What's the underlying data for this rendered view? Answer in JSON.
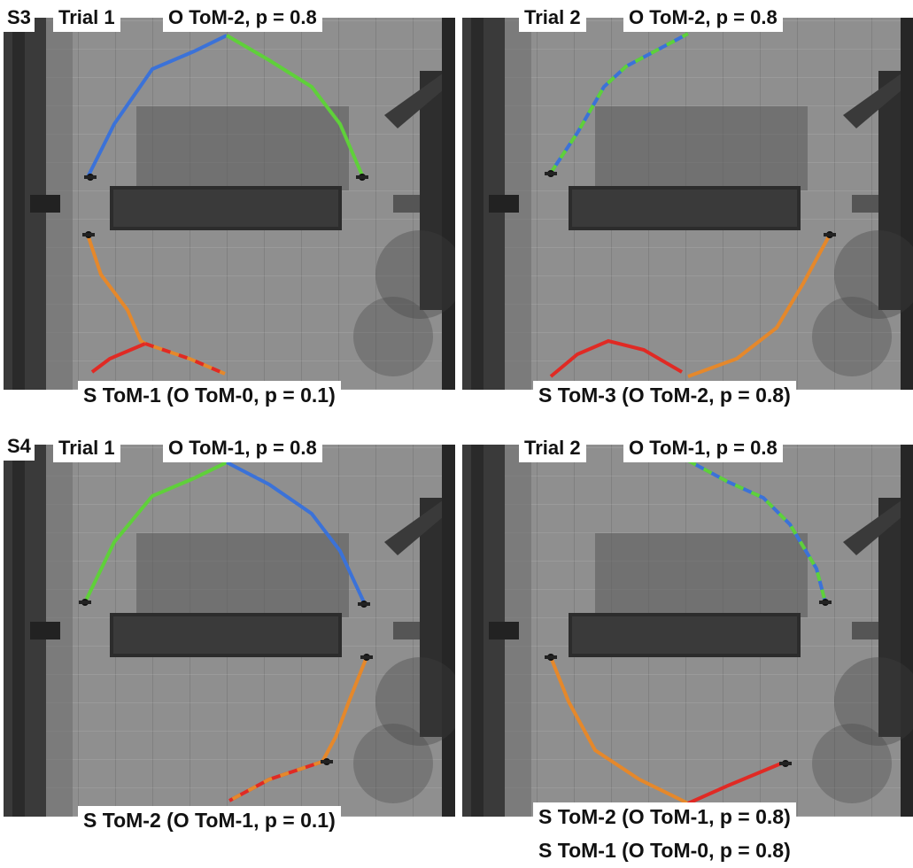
{
  "colors": {
    "blue": "#3b72d8",
    "green": "#5fd03a",
    "orange": "#e5882b",
    "red": "#e02a24"
  },
  "rows": [
    {
      "scenario": "S3",
      "panels": [
        {
          "trial": "Trial 1",
          "observer": "O ToM-2, p = 0.8",
          "subject": [
            "S ToM-1 (O ToM-0, p = 0.1)"
          ]
        },
        {
          "trial": "Trial 2",
          "observer": "O ToM-2, p = 0.8",
          "subject": [
            "S ToM-3 (O ToM-2, p = 0.8)"
          ]
        }
      ]
    },
    {
      "scenario": "S4",
      "panels": [
        {
          "trial": "Trial 1",
          "observer": "O ToM-1, p = 0.8",
          "subject": [
            "S ToM-2 (O ToM-1, p = 0.1)"
          ]
        },
        {
          "trial": "Trial 2",
          "observer": "O ToM-1, p = 0.8",
          "subject": [
            "S ToM-2 (O ToM-1, p = 0.8)",
            "S ToM-1 (O ToM-0, p = 0.8)"
          ]
        }
      ]
    }
  ]
}
